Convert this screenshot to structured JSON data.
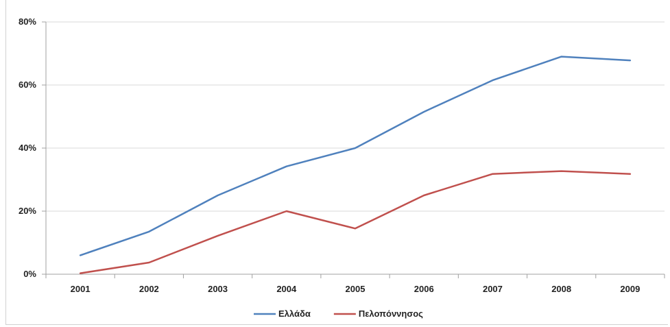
{
  "chart_data": {
    "type": "line",
    "categories": [
      "2001",
      "2002",
      "2003",
      "2004",
      "2005",
      "2006",
      "2007",
      "2008",
      "2009"
    ],
    "series": [
      {
        "name": "Ελλάδα",
        "color": "#4f81bd",
        "values": [
          6,
          13.5,
          25,
          34.2,
          40,
          51.5,
          61.5,
          69,
          67.8
        ]
      },
      {
        "name": "Πελοπόννησος",
        "color": "#c0504d",
        "values": [
          0.3,
          3.7,
          12.2,
          20,
          14.5,
          25,
          31.8,
          32.7,
          31.8
        ]
      }
    ],
    "ylim": [
      0,
      80
    ],
    "yticks": [
      0,
      20,
      40,
      60,
      80
    ],
    "ytick_labels": [
      "0%",
      "20%",
      "40%",
      "60%",
      "80%"
    ],
    "grid": true,
    "legend_position": "bottom",
    "gridline_color": "#d9d9d9",
    "axis_color": "#a0a0a0"
  }
}
